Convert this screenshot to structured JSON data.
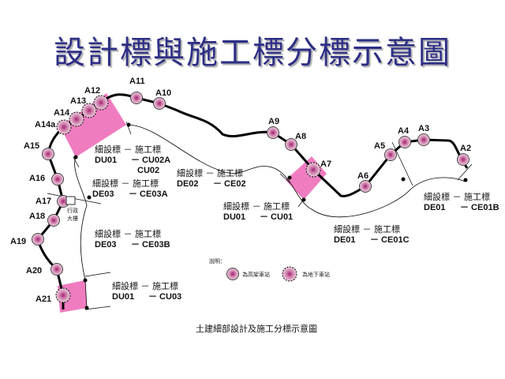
{
  "title": "設計標與施工標分標示意圖",
  "caption": "土建細部設計及施工分標示意圖",
  "colors": {
    "title": "#2e2e86",
    "section_fill": "#f07cc0",
    "station_fill": "#d08cb0",
    "station_core": "#b03a80",
    "line": "#000000"
  },
  "stations": [
    {
      "id": "A2",
      "type": "elevated"
    },
    {
      "id": "A3",
      "type": "elevated"
    },
    {
      "id": "A4",
      "type": "elevated"
    },
    {
      "id": "A5",
      "type": "elevated"
    },
    {
      "id": "A6",
      "type": "elevated"
    },
    {
      "id": "A7",
      "type": "underground"
    },
    {
      "id": "A8",
      "type": "elevated"
    },
    {
      "id": "A9",
      "type": "elevated"
    },
    {
      "id": "A10",
      "type": "elevated"
    },
    {
      "id": "A11",
      "type": "elevated"
    },
    {
      "id": "A12",
      "type": "underground"
    },
    {
      "id": "A13",
      "type": "underground"
    },
    {
      "id": "A14",
      "type": "underground"
    },
    {
      "id": "A14a",
      "type": "underground"
    },
    {
      "id": "A15",
      "type": "elevated"
    },
    {
      "id": "A16",
      "type": "elevated"
    },
    {
      "id": "A17",
      "type": "elevated"
    },
    {
      "id": "A18",
      "type": "elevated"
    },
    {
      "id": "A19",
      "type": "elevated"
    },
    {
      "id": "A20",
      "type": "elevated"
    },
    {
      "id": "A21",
      "type": "underground"
    }
  ],
  "contracts": [
    {
      "header": "細設標 － 施工標",
      "design": "DU01",
      "construction": "－ CU02A",
      "extra": "CU02"
    },
    {
      "header": "細設標 － 施工標",
      "design": "DE03",
      "construction": "－ CE03A"
    },
    {
      "header": "細設標 － 施工標",
      "design": "DE02",
      "construction": "－ CE02"
    },
    {
      "header": "細設標 － 施工標",
      "design": "DU01",
      "construction": "－ CU01"
    },
    {
      "header": "細設標 － 施工標",
      "design": "DE03",
      "construction": "－ CE03B"
    },
    {
      "header": "細設標 － 施工標",
      "design": "DE01",
      "construction": "－ CE01C"
    },
    {
      "header": "細設標 － 施工標",
      "design": "DE01",
      "construction": "－ CE01B"
    },
    {
      "header": "細設標 － 施工標",
      "design": "DU01",
      "construction": "－ CU03"
    }
  ],
  "landmark": {
    "line1": "行政",
    "line2": "大樓"
  },
  "legend": {
    "title": "說明：",
    "elevated": "為高架車站",
    "underground": "為地下車站"
  }
}
